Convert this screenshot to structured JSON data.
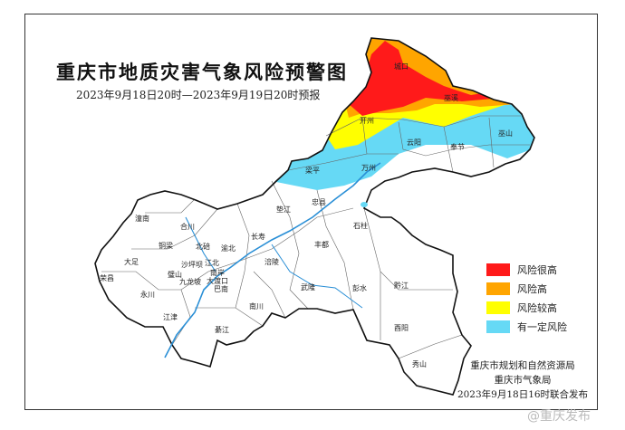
{
  "header": {
    "title": "重庆市地质灾害气象风险预警图",
    "subtitle": "2023年9月18日20时—2023年9月19日20时预报"
  },
  "legend": [
    {
      "label": "风险很高",
      "color": "#ff1a1a"
    },
    {
      "label": "风险高",
      "color": "#ffa500"
    },
    {
      "label": "风险较高",
      "color": "#ffff00"
    },
    {
      "label": "有一定风险",
      "color": "#66d9f5"
    }
  ],
  "districts": {
    "chengkou": "城口",
    "wuxi": "巫溪",
    "kaizhou": "开州",
    "yunyang": "云阳",
    "wushan": "巫山",
    "fengjie": "奉节",
    "liangping": "梁平",
    "wanzhou": "万州",
    "zhongxian": "忠县",
    "dianjiang": "垫江",
    "shizhu": "石柱",
    "changshou": "长寿",
    "fengdu": "丰都",
    "fuling": "涪陵",
    "wulong": "武隆",
    "pengshui": "彭水",
    "qianjiang": "黔江",
    "youyang": "酉阳",
    "xiushan": "秀山",
    "nanchuan": "南川",
    "qijiang": "綦江",
    "banan": "巴南",
    "nanan": "南岸",
    "dadukou": "大渡口",
    "jiulongpo": "九龙坡",
    "shapingba": "沙坪坝",
    "jiangbei": "江北",
    "yubei": "渝北",
    "beibei": "北碚",
    "hechuan": "合川",
    "tongnan": "潼南",
    "tongliang": "铜梁",
    "dazu": "大足",
    "rongchang": "荣昌",
    "bishan": "璧山",
    "yongchuan": "永川",
    "jiangjin": "江津"
  },
  "issuer": {
    "line1": "重庆市规划和自然资源局",
    "line2": "重庆市气象局",
    "line3": "2023年9月18日16时联合发布"
  },
  "watermark": "@重庆发布"
}
